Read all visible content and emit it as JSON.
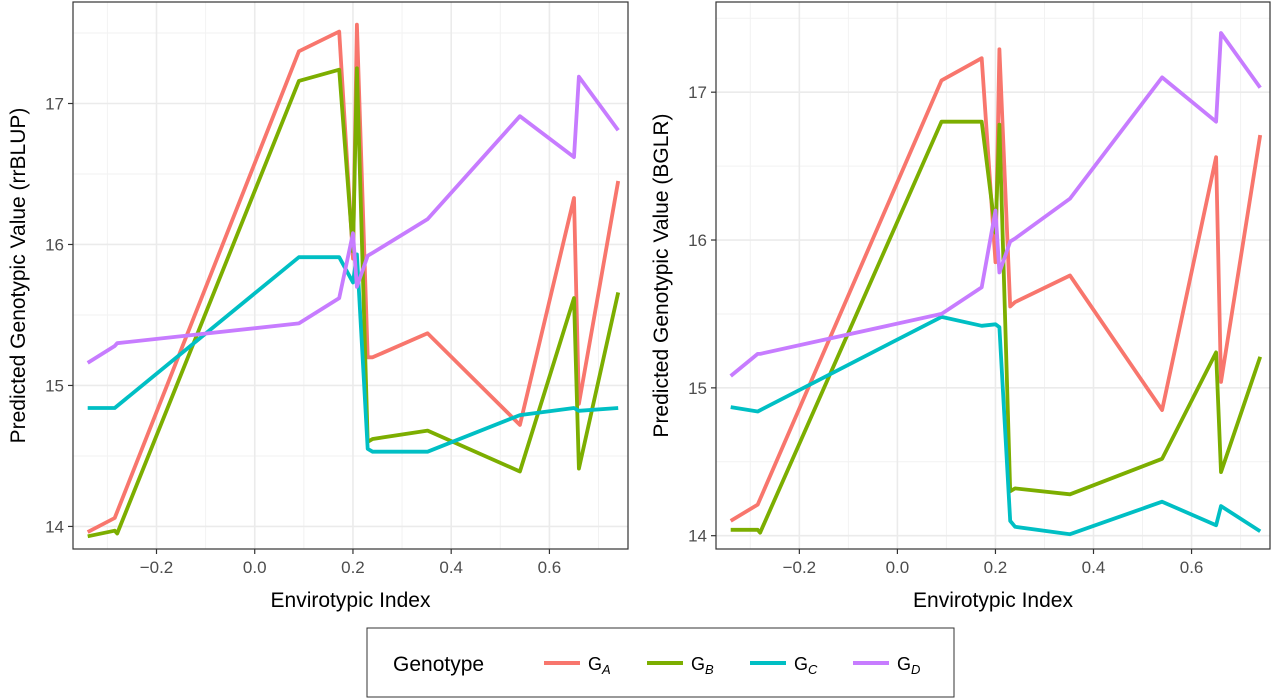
{
  "chart_data": [
    {
      "type": "line",
      "panel": "left",
      "ylabel": "Predicted Genotypic Value (rrBLUP)",
      "xlabel": "Envirotypic Index",
      "xlim": [
        -0.37,
        0.76
      ],
      "ylim": [
        13.84,
        17.72
      ],
      "x_ticks": [
        -0.2,
        0.0,
        0.2,
        0.4,
        0.6
      ],
      "x_tick_labels": [
        "−0.2",
        "0.0",
        "0.2",
        "0.4",
        "0.6"
      ],
      "y_ticks": [
        14,
        15,
        16,
        17
      ],
      "y_tick_labels": [
        "14",
        "15",
        "16",
        "17"
      ],
      "grid": true,
      "series": [
        {
          "name": "GA",
          "color": "#F8766D",
          "points": [
            [
              -0.34,
              13.96
            ],
            [
              -0.285,
              14.06
            ],
            [
              0.09,
              17.37
            ],
            [
              0.172,
              17.51
            ],
            [
              0.2,
              15.9
            ],
            [
              0.208,
              17.56
            ],
            [
              0.23,
              15.2
            ],
            [
              0.24,
              15.2
            ],
            [
              0.352,
              15.37
            ],
            [
              0.54,
              14.72
            ],
            [
              0.65,
              16.33
            ],
            [
              0.66,
              14.87
            ],
            [
              0.74,
              16.45
            ]
          ]
        },
        {
          "name": "GB",
          "color": "#7CAE00",
          "points": [
            [
              -0.34,
              13.93
            ],
            [
              -0.285,
              13.97
            ],
            [
              -0.28,
              13.95
            ],
            [
              0.09,
              17.16
            ],
            [
              0.172,
              17.24
            ],
            [
              0.2,
              15.95
            ],
            [
              0.208,
              17.25
            ],
            [
              0.23,
              14.6
            ],
            [
              0.24,
              14.62
            ],
            [
              0.352,
              14.68
            ],
            [
              0.54,
              14.39
            ],
            [
              0.65,
              15.62
            ],
            [
              0.66,
              14.41
            ],
            [
              0.74,
              15.66
            ]
          ]
        },
        {
          "name": "GC",
          "color": "#00BFC4",
          "points": [
            [
              -0.34,
              14.84
            ],
            [
              -0.285,
              14.84
            ],
            [
              0.09,
              15.91
            ],
            [
              0.172,
              15.91
            ],
            [
              0.2,
              15.73
            ],
            [
              0.208,
              15.93
            ],
            [
              0.23,
              14.55
            ],
            [
              0.24,
              14.53
            ],
            [
              0.352,
              14.53
            ],
            [
              0.54,
              14.79
            ],
            [
              0.65,
              14.84
            ],
            [
              0.66,
              14.82
            ],
            [
              0.74,
              14.84
            ]
          ]
        },
        {
          "name": "GD",
          "color": "#C77CFF",
          "points": [
            [
              -0.34,
              15.16
            ],
            [
              -0.285,
              15.28
            ],
            [
              -0.28,
              15.3
            ],
            [
              0.09,
              15.44
            ],
            [
              0.172,
              15.62
            ],
            [
              0.2,
              16.08
            ],
            [
              0.208,
              15.7
            ],
            [
              0.23,
              15.92
            ],
            [
              0.24,
              15.94
            ],
            [
              0.352,
              16.18
            ],
            [
              0.54,
              16.91
            ],
            [
              0.65,
              16.62
            ],
            [
              0.66,
              17.19
            ],
            [
              0.74,
              16.81
            ]
          ]
        }
      ]
    },
    {
      "type": "line",
      "panel": "right",
      "ylabel": "Predicted Genotypic Value (BGLR)",
      "xlabel": "Envirotypic Index",
      "xlim": [
        -0.37,
        0.76
      ],
      "ylim": [
        13.91,
        17.61
      ],
      "x_ticks": [
        -0.2,
        0.0,
        0.2,
        0.4,
        0.6
      ],
      "x_tick_labels": [
        "−0.2",
        "0.0",
        "0.2",
        "0.4",
        "0.6"
      ],
      "y_ticks": [
        14,
        15,
        16,
        17
      ],
      "y_tick_labels": [
        "14",
        "15",
        "16",
        "17"
      ],
      "grid": true,
      "series": [
        {
          "name": "GA",
          "color": "#F8766D",
          "points": [
            [
              -0.34,
              14.1
            ],
            [
              -0.285,
              14.21
            ],
            [
              0.09,
              17.08
            ],
            [
              0.172,
              17.23
            ],
            [
              0.2,
              15.85
            ],
            [
              0.208,
              17.29
            ],
            [
              0.23,
              15.55
            ],
            [
              0.24,
              15.58
            ],
            [
              0.352,
              15.76
            ],
            [
              0.54,
              14.85
            ],
            [
              0.65,
              16.56
            ],
            [
              0.66,
              15.04
            ],
            [
              0.74,
              16.71
            ]
          ]
        },
        {
          "name": "GB",
          "color": "#7CAE00",
          "points": [
            [
              -0.34,
              14.04
            ],
            [
              -0.285,
              14.04
            ],
            [
              -0.28,
              14.02
            ],
            [
              0.09,
              16.8
            ],
            [
              0.172,
              16.8
            ],
            [
              0.2,
              16.05
            ],
            [
              0.208,
              16.78
            ],
            [
              0.23,
              14.3
            ],
            [
              0.24,
              14.32
            ],
            [
              0.352,
              14.28
            ],
            [
              0.54,
              14.52
            ],
            [
              0.65,
              15.24
            ],
            [
              0.66,
              14.43
            ],
            [
              0.74,
              15.21
            ]
          ]
        },
        {
          "name": "GC",
          "color": "#00BFC4",
          "points": [
            [
              -0.34,
              14.87
            ],
            [
              -0.285,
              14.84
            ],
            [
              0.09,
              15.48
            ],
            [
              0.172,
              15.42
            ],
            [
              0.2,
              15.43
            ],
            [
              0.208,
              15.41
            ],
            [
              0.23,
              14.1
            ],
            [
              0.24,
              14.06
            ],
            [
              0.352,
              14.01
            ],
            [
              0.54,
              14.23
            ],
            [
              0.65,
              14.07
            ],
            [
              0.66,
              14.2
            ],
            [
              0.74,
              14.03
            ]
          ]
        },
        {
          "name": "GD",
          "color": "#C77CFF",
          "points": [
            [
              -0.34,
              15.08
            ],
            [
              -0.285,
              15.23
            ],
            [
              -0.28,
              15.23
            ],
            [
              0.09,
              15.5
            ],
            [
              0.172,
              15.68
            ],
            [
              0.2,
              16.2
            ],
            [
              0.208,
              15.78
            ],
            [
              0.23,
              15.99
            ],
            [
              0.24,
              16.01
            ],
            [
              0.352,
              16.28
            ],
            [
              0.54,
              17.1
            ],
            [
              0.65,
              16.8
            ],
            [
              0.66,
              17.4
            ],
            [
              0.74,
              17.03
            ]
          ]
        }
      ]
    }
  ],
  "legend": {
    "title": "Genotype",
    "items": [
      {
        "base": "G",
        "sub": "A",
        "color": "#F8766D"
      },
      {
        "base": "G",
        "sub": "B",
        "color": "#7CAE00"
      },
      {
        "base": "G",
        "sub": "C",
        "color": "#00BFC4"
      },
      {
        "base": "G",
        "sub": "D",
        "color": "#C77CFF"
      }
    ]
  }
}
